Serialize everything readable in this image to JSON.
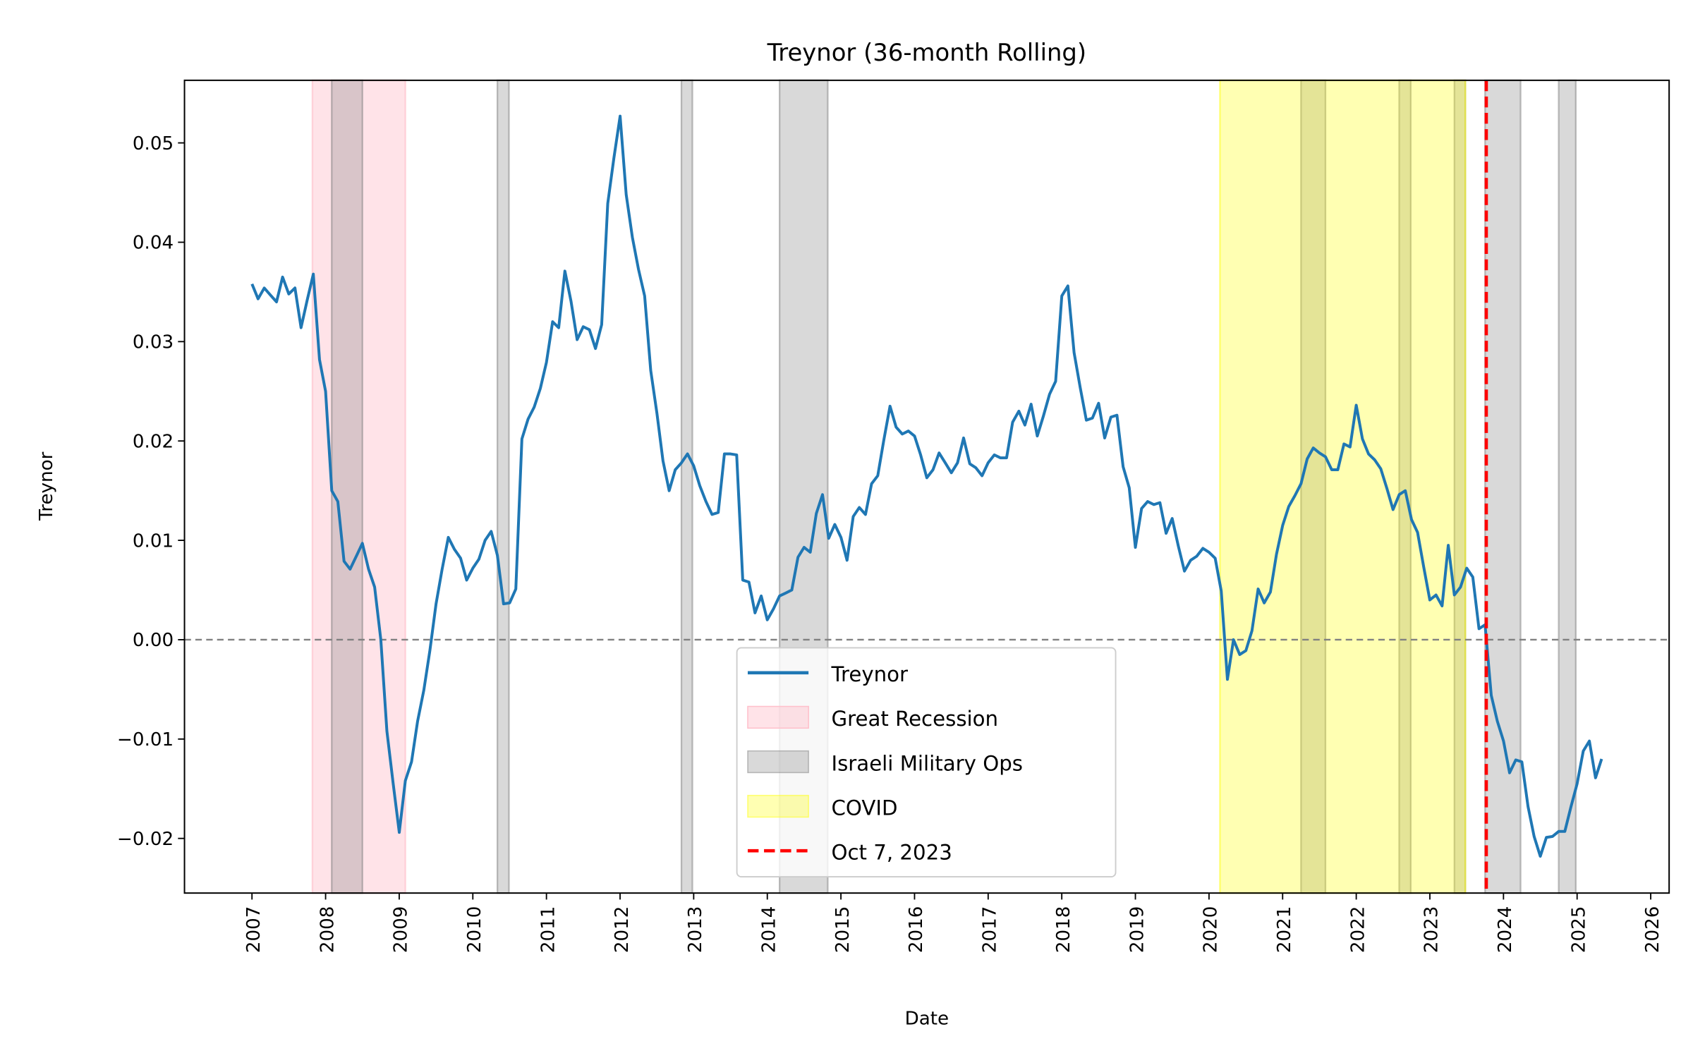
{
  "chart_data": {
    "type": "line",
    "title": "Treynor (36-month Rolling)",
    "xlabel": "Date",
    "ylabel": "Treynor",
    "xlim": [
      "2006-02-01",
      "2026-04-01"
    ],
    "ylim": [
      -0.0255,
      0.0563
    ],
    "x_ticks": [
      "2007",
      "2008",
      "2009",
      "2010",
      "2011",
      "2012",
      "2013",
      "2014",
      "2015",
      "2016",
      "2017",
      "2018",
      "2019",
      "2020",
      "2021",
      "2022",
      "2023",
      "2024",
      "2025",
      "2026"
    ],
    "y_ticks": [
      0.05,
      0.04,
      0.03,
      0.02,
      0.01,
      0.0,
      -0.01,
      -0.02
    ],
    "y_tick_labels": [
      "0.05",
      "0.04",
      "0.03",
      "0.02",
      "0.01",
      "0.00",
      "−0.01",
      "−0.02"
    ],
    "grid": false,
    "legend_placement": "lower-center",
    "series": [
      {
        "name": "Treynor",
        "color": "#1f77b4",
        "start": "2007-01",
        "frequency": "monthly",
        "values": [
          0.0358,
          0.0343,
          0.0354,
          0.0347,
          0.034,
          0.0365,
          0.0348,
          0.0354,
          0.0314,
          0.0342,
          0.0368,
          0.0282,
          0.025,
          0.015,
          0.0139,
          0.0079,
          0.0071,
          0.0084,
          0.0097,
          0.0071,
          0.0053,
          0.0,
          -0.0092,
          -0.0144,
          -0.0194,
          -0.0142,
          -0.0123,
          -0.0082,
          -0.0051,
          -0.0011,
          0.0036,
          0.0071,
          0.0103,
          0.0091,
          0.0082,
          0.006,
          0.0072,
          0.0081,
          0.01,
          0.0109,
          0.0085,
          0.0036,
          0.0037,
          0.0051,
          0.0202,
          0.0222,
          0.0234,
          0.0253,
          0.0279,
          0.032,
          0.0314,
          0.0371,
          0.0341,
          0.0302,
          0.0315,
          0.0312,
          0.0293,
          0.0317,
          0.0439,
          0.0485,
          0.0527,
          0.0448,
          0.0405,
          0.0373,
          0.0346,
          0.0271,
          0.0228,
          0.018,
          0.015,
          0.0171,
          0.0178,
          0.0187,
          0.0175,
          0.0155,
          0.0139,
          0.0126,
          0.0128,
          0.0187,
          0.0187,
          0.0186,
          0.006,
          0.0058,
          0.0027,
          0.0044,
          0.002,
          0.0031,
          0.0044,
          0.0047,
          0.005,
          0.0083,
          0.0093,
          0.0088,
          0.0127,
          0.0146,
          0.0102,
          0.0116,
          0.0103,
          0.008,
          0.0124,
          0.0133,
          0.0126,
          0.0157,
          0.0165,
          0.0201,
          0.0235,
          0.0214,
          0.0207,
          0.021,
          0.0205,
          0.0186,
          0.0163,
          0.0171,
          0.0188,
          0.0178,
          0.0168,
          0.0178,
          0.0203,
          0.0177,
          0.0173,
          0.0165,
          0.0178,
          0.0186,
          0.0183,
          0.0183,
          0.0219,
          0.023,
          0.0216,
          0.0237,
          0.0205,
          0.0225,
          0.0247,
          0.026,
          0.0346,
          0.0356,
          0.0289,
          0.0254,
          0.0221,
          0.0223,
          0.0238,
          0.0203,
          0.0224,
          0.0226,
          0.0174,
          0.0153,
          0.0093,
          0.0132,
          0.0139,
          0.0136,
          0.0138,
          0.0107,
          0.0122,
          0.0094,
          0.0069,
          0.008,
          0.0084,
          0.0092,
          0.0088,
          0.0082,
          0.0049,
          -0.004,
          0.0,
          -0.0015,
          -0.0011,
          0.0009,
          0.0051,
          0.0037,
          0.0048,
          0.0086,
          0.0115,
          0.0134,
          0.0145,
          0.0157,
          0.0182,
          0.0193,
          0.0188,
          0.0184,
          0.0171,
          0.0171,
          0.0197,
          0.0194,
          0.0236,
          0.0202,
          0.0187,
          0.0181,
          0.0172,
          0.0152,
          0.0131,
          0.0146,
          0.015,
          0.0121,
          0.0108,
          0.0073,
          0.004,
          0.0045,
          0.0034,
          0.0095,
          0.0045,
          0.0053,
          0.0072,
          0.0063,
          0.0011,
          0.0015,
          -0.0056,
          -0.0082,
          -0.0102,
          -0.0134,
          -0.0121,
          -0.0123,
          -0.0168,
          -0.0198,
          -0.0218,
          -0.0199,
          -0.0198,
          -0.0193,
          -0.0193,
          -0.0168,
          -0.0145,
          -0.0112,
          -0.0102,
          -0.0139,
          -0.012
        ]
      }
    ],
    "reference_lines": [
      {
        "axis": "y",
        "value": 0.0,
        "color": "#808080",
        "style": "dashed"
      },
      {
        "axis": "x",
        "value": "2023-10-07",
        "color": "#ff0000",
        "style": "dashed",
        "name": "Oct 7, 2023"
      }
    ],
    "shaded_regions": [
      {
        "name": "Great Recession",
        "color": "#ffc0cb",
        "opacity": 0.45,
        "spans": [
          [
            "2007-10-27",
            "2009-02-01"
          ]
        ]
      },
      {
        "name": "Israeli Military Ops",
        "color": "#808080",
        "opacity": 0.3,
        "spans": [
          [
            "2008-02-01",
            "2008-07-01"
          ],
          [
            "2010-05-01",
            "2010-06-28"
          ],
          [
            "2012-11-01",
            "2012-12-25"
          ],
          [
            "2014-03-01",
            "2014-10-27"
          ],
          [
            "2021-04-01",
            "2021-07-31"
          ],
          [
            "2022-08-01",
            "2022-09-28"
          ],
          [
            "2023-05-01",
            "2023-06-25"
          ],
          [
            "2023-10-01",
            "2024-03-25"
          ],
          [
            "2024-10-01",
            "2024-12-25"
          ]
        ]
      },
      {
        "name": "COVID",
        "color": "#ffff00",
        "opacity": 0.3,
        "spans": [
          [
            "2020-02-25",
            "2023-06-25"
          ]
        ]
      }
    ],
    "legend": [
      "Treynor",
      "Great Recession",
      "Israeli Military Ops",
      "COVID",
      "Oct 7, 2023"
    ]
  }
}
